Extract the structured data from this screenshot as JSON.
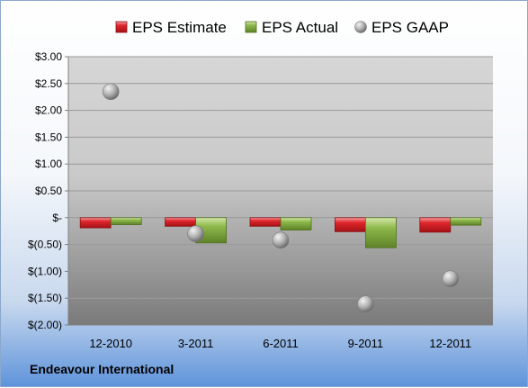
{
  "company": "Endeavour International",
  "colors": {
    "estimate": "#e0262c",
    "actual": "#8db84a",
    "gaap": "#a9a9a9"
  },
  "chart_data": {
    "type": "bar",
    "categories": [
      "12-2010",
      "3-2011",
      "6-2011",
      "9-2011",
      "12-2011"
    ],
    "series": [
      {
        "name": "EPS Estimate",
        "kind": "bar",
        "values": [
          -0.19,
          -0.16,
          -0.16,
          -0.26,
          -0.27
        ]
      },
      {
        "name": "EPS Actual",
        "kind": "bar",
        "values": [
          -0.13,
          -0.47,
          -0.23,
          -0.56,
          -0.14
        ]
      },
      {
        "name": "EPS GAAP",
        "kind": "scatter",
        "values": [
          2.35,
          -0.3,
          -0.42,
          -1.61,
          -1.14
        ]
      }
    ],
    "ylim": [
      -2.0,
      3.0
    ],
    "ytick_values": [
      3.0,
      2.5,
      2.0,
      1.5,
      1.0,
      0.5,
      0,
      -0.5,
      -1.0,
      -1.5,
      -2.0
    ],
    "ytick_labels": [
      "$3.00",
      "$2.50",
      "$2.00",
      "$1.50",
      "$1.00",
      "$0.50",
      "$-",
      "$(0.50)",
      "$(1.00)",
      "$(1.50)",
      "$(2.00)"
    ],
    "grid": true,
    "legend_position": "top"
  }
}
